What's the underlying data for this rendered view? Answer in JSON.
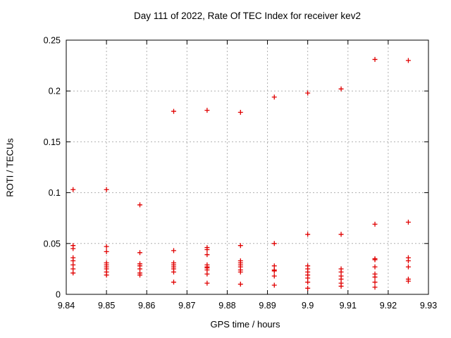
{
  "colors": {
    "background": "#ffffff",
    "axis": "#000000",
    "grid": "#b0b0b0",
    "text": "#000000"
  },
  "chart_data": {
    "type": "scatter",
    "title": "Day 111 of 2022, Rate Of TEC Index for receiver kev2",
    "xlabel": "GPS time / hours",
    "ylabel": "ROTI / TECUs",
    "xlim": [
      9.84,
      9.93
    ],
    "ylim": [
      0,
      0.25
    ],
    "x_ticks": [
      9.84,
      9.85,
      9.86,
      9.87,
      9.88,
      9.89,
      9.9,
      9.91,
      9.92,
      9.93
    ],
    "x_tick_labels": [
      "9.84",
      "9.85",
      "9.86",
      "9.87",
      "9.88",
      "9.89",
      "9.9",
      "9.91",
      "9.92",
      "9.93"
    ],
    "y_ticks": [
      0,
      0.05,
      0.1,
      0.15,
      0.2,
      0.25
    ],
    "y_tick_labels": [
      "0",
      "0.05",
      "0.1",
      "0.15",
      "0.2",
      "0.25"
    ],
    "grid": true,
    "legend": "none",
    "marker": "plus",
    "marker_color": "#e00000",
    "series": [
      {
        "name": "ROTI",
        "points": [
          [
            9.8417,
            0.103
          ],
          [
            9.8417,
            0.048
          ],
          [
            9.8417,
            0.045
          ],
          [
            9.8417,
            0.036
          ],
          [
            9.8417,
            0.033
          ],
          [
            9.8417,
            0.029
          ],
          [
            9.8417,
            0.025
          ],
          [
            9.8417,
            0.021
          ],
          [
            9.85,
            0.103
          ],
          [
            9.85,
            0.047
          ],
          [
            9.85,
            0.042
          ],
          [
            9.85,
            0.031
          ],
          [
            9.85,
            0.029
          ],
          [
            9.85,
            0.027
          ],
          [
            9.85,
            0.025
          ],
          [
            9.85,
            0.022
          ],
          [
            9.85,
            0.019
          ],
          [
            9.8583,
            0.088
          ],
          [
            9.8583,
            0.041
          ],
          [
            9.8583,
            0.03
          ],
          [
            9.8583,
            0.028
          ],
          [
            9.8583,
            0.025
          ],
          [
            9.8583,
            0.021
          ],
          [
            9.8583,
            0.019
          ],
          [
            9.8667,
            0.18
          ],
          [
            9.8667,
            0.043
          ],
          [
            9.8667,
            0.031
          ],
          [
            9.8667,
            0.029
          ],
          [
            9.8667,
            0.027
          ],
          [
            9.8667,
            0.025
          ],
          [
            9.8667,
            0.022
          ],
          [
            9.8667,
            0.012
          ],
          [
            9.875,
            0.181
          ],
          [
            9.875,
            0.046
          ],
          [
            9.875,
            0.044
          ],
          [
            9.875,
            0.039
          ],
          [
            9.875,
            0.029
          ],
          [
            9.875,
            0.027
          ],
          [
            9.875,
            0.026
          ],
          [
            9.875,
            0.024
          ],
          [
            9.875,
            0.02
          ],
          [
            9.875,
            0.011
          ],
          [
            9.8833,
            0.179
          ],
          [
            9.8833,
            0.048
          ],
          [
            9.8833,
            0.033
          ],
          [
            9.8833,
            0.031
          ],
          [
            9.8833,
            0.029
          ],
          [
            9.8833,
            0.027
          ],
          [
            9.8833,
            0.024
          ],
          [
            9.8833,
            0.022
          ],
          [
            9.8833,
            0.01
          ],
          [
            9.8917,
            0.194
          ],
          [
            9.8917,
            0.05
          ],
          [
            9.8917,
            0.028
          ],
          [
            9.8917,
            0.024
          ],
          [
            9.8917,
            0.023
          ],
          [
            9.8917,
            0.018
          ],
          [
            9.8917,
            0.009
          ],
          [
            9.9,
            0.198
          ],
          [
            9.9,
            0.059
          ],
          [
            9.9,
            0.028
          ],
          [
            9.9,
            0.025
          ],
          [
            9.9,
            0.022
          ],
          [
            9.9,
            0.019
          ],
          [
            9.9,
            0.016
          ],
          [
            9.9,
            0.012
          ],
          [
            9.9,
            0.006
          ],
          [
            9.9083,
            0.202
          ],
          [
            9.9083,
            0.059
          ],
          [
            9.9083,
            0.025
          ],
          [
            9.9083,
            0.022
          ],
          [
            9.9083,
            0.018
          ],
          [
            9.9083,
            0.015
          ],
          [
            9.9083,
            0.011
          ],
          [
            9.9083,
            0.008
          ],
          [
            9.9167,
            0.231
          ],
          [
            9.9167,
            0.069
          ],
          [
            9.9167,
            0.035
          ],
          [
            9.9167,
            0.034
          ],
          [
            9.9167,
            0.027
          ],
          [
            9.9167,
            0.02
          ],
          [
            9.9167,
            0.017
          ],
          [
            9.9167,
            0.012
          ],
          [
            9.9167,
            0.007
          ],
          [
            9.925,
            0.23
          ],
          [
            9.925,
            0.071
          ],
          [
            9.925,
            0.036
          ],
          [
            9.925,
            0.033
          ],
          [
            9.925,
            0.027
          ],
          [
            9.925,
            0.015
          ],
          [
            9.925,
            0.013
          ]
        ]
      }
    ]
  }
}
